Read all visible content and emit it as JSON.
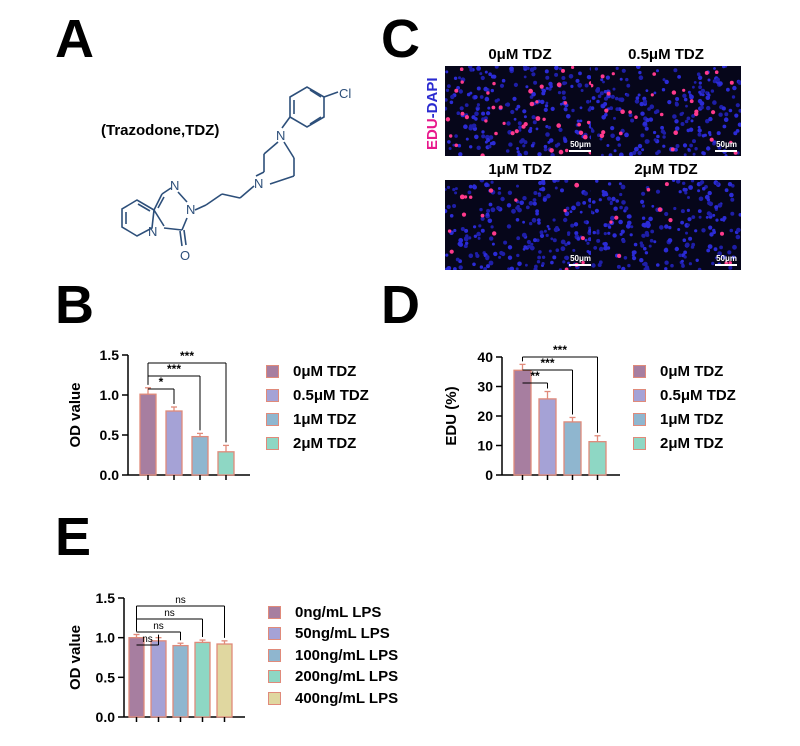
{
  "panels": {
    "A": {
      "letter": "A",
      "compound_label": "(Trazodone,TDZ)",
      "chem_atoms": {
        "cl": "Cl",
        "n1": "N",
        "n2": "N",
        "n3": "N",
        "n4": "N",
        "n5": "N",
        "o": "O"
      }
    },
    "B": {
      "letter": "B"
    },
    "C": {
      "letter": "C",
      "axis_edu": "EDU",
      "axis_dash": "-",
      "axis_dapi": "DAPI",
      "edu_color": "#e8188c",
      "dapi_color": "#2a2ad0",
      "images": [
        {
          "title": "0μM TDZ",
          "scale": "50μm",
          "red_count": 40
        },
        {
          "title": "0.5μM TDZ",
          "scale": "50μm",
          "red_count": 28
        },
        {
          "title": "1μM TDZ",
          "scale": "50μm",
          "red_count": 16
        },
        {
          "title": "2μM TDZ",
          "scale": "50μm",
          "red_count": 10
        }
      ]
    },
    "D": {
      "letter": "D"
    },
    "E": {
      "letter": "E"
    }
  },
  "chart_data": [
    {
      "id": "B",
      "type": "bar",
      "categories": [
        "0μM TDZ",
        "0.5μM TDZ",
        "1μM TDZ",
        "2μM TDZ"
      ],
      "values": [
        1.01,
        0.8,
        0.48,
        0.29
      ],
      "errors": [
        0.08,
        0.05,
        0.04,
        0.08
      ],
      "ylabel": "OD value",
      "ylim": [
        0,
        1.5
      ],
      "yticks": [
        "0.0",
        "0.5",
        "1.0",
        "1.5"
      ],
      "colors": [
        "#a77ea0",
        "#a5a2d6",
        "#8fb6cf",
        "#8ed7c4"
      ],
      "bar_edge": "#e08a7a",
      "legend": [
        "0μM TDZ",
        "0.5μM TDZ",
        "1μM TDZ",
        "2μM TDZ"
      ],
      "significance": [
        {
          "from": 0,
          "to": 1,
          "label": "*"
        },
        {
          "from": 0,
          "to": 2,
          "label": "***"
        },
        {
          "from": 0,
          "to": 3,
          "label": "***"
        }
      ]
    },
    {
      "id": "D",
      "type": "bar",
      "categories": [
        "0μM TDZ",
        "0.5μM TDZ",
        "1μM TDZ",
        "2μM TDZ"
      ],
      "values": [
        35.5,
        25.8,
        18.0,
        11.3
      ],
      "errors": [
        2.0,
        2.5,
        1.5,
        2.0
      ],
      "ylabel": "EDU (%)",
      "ylim": [
        0,
        40
      ],
      "yticks": [
        "0",
        "10",
        "20",
        "30",
        "40"
      ],
      "colors": [
        "#a77ea0",
        "#a5a2d6",
        "#8fb6cf",
        "#8ed7c4"
      ],
      "bar_edge": "#e08a7a",
      "legend": [
        "0μM TDZ",
        "0.5μM TDZ",
        "1μM TDZ",
        "2μM TDZ"
      ],
      "significance": [
        {
          "from": 0,
          "to": 1,
          "label": "**"
        },
        {
          "from": 0,
          "to": 2,
          "label": "***"
        },
        {
          "from": 0,
          "to": 3,
          "label": "***"
        }
      ]
    },
    {
      "id": "E",
      "type": "bar",
      "categories": [
        "0ng/mL LPS",
        "50ng/mL LPS",
        "100ng/mL LPS",
        "200ng/mL LPS",
        "400ng/mL LPS"
      ],
      "values": [
        1.0,
        0.96,
        0.9,
        0.94,
        0.92
      ],
      "errors": [
        0.04,
        0.04,
        0.03,
        0.03,
        0.04
      ],
      "ylabel": "OD value",
      "ylim": [
        0,
        1.5
      ],
      "yticks": [
        "0.0",
        "0.5",
        "1.0",
        "1.5"
      ],
      "colors": [
        "#a77ea0",
        "#a5a2d6",
        "#8fb6cf",
        "#8ed7c4",
        "#e0d7a0"
      ],
      "bar_edge": "#e08a7a",
      "legend": [
        "0ng/mL LPS",
        "50ng/mL LPS",
        "100ng/mL LPS",
        "200ng/mL LPS",
        "400ng/mL LPS"
      ],
      "significance": [
        {
          "from": 0,
          "to": 1,
          "label": "ns"
        },
        {
          "from": 0,
          "to": 2,
          "label": "ns"
        },
        {
          "from": 0,
          "to": 3,
          "label": "ns"
        },
        {
          "from": 0,
          "to": 4,
          "label": "ns"
        }
      ]
    }
  ]
}
